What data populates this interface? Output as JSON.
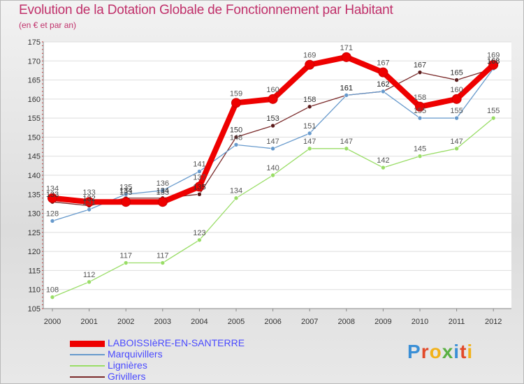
{
  "title": "Evolution de la Dotation Globale de Fonctionnement par Habitant",
  "subtitle": "(en € et par an)",
  "logo": {
    "text": "Proxiti"
  },
  "colors": {
    "LABOISSIÈRE-EN-SANTERRE": "#ee0000",
    "Marquivillers": "#6699cc",
    "Lignières": "#99dd66",
    "Grivillers": "#7a2a2a"
  },
  "chart_data": {
    "type": "line",
    "title": "Evolution de la Dotation Globale de Fonctionnement par Habitant",
    "subtitle": "(en € et par an)",
    "xlabel": "",
    "ylabel": "",
    "ylim": [
      105,
      175
    ],
    "yticks": [
      105,
      110,
      115,
      120,
      125,
      130,
      135,
      140,
      145,
      150,
      155,
      160,
      165,
      170,
      175
    ],
    "grid": "horizontal",
    "legend": "bottom-left",
    "x": [
      "2000",
      "2001",
      "2002",
      "2003",
      "2004",
      "2005",
      "2006",
      "2007",
      "2008",
      "2009",
      "2010",
      "2011",
      "2012"
    ],
    "series": [
      {
        "name": "LABOISSIÈRE-EN-SANTERRE",
        "legend_label": "LABOISSIèRE-EN-SANTERRE",
        "values": [
          134,
          133,
          133,
          133,
          137,
          159,
          160,
          169,
          171,
          167,
          158,
          160,
          169
        ]
      },
      {
        "name": "Marquivillers",
        "legend_label": "Marquivillers",
        "values": [
          128,
          131,
          135,
          136,
          141,
          148,
          147,
          151,
          161,
          162,
          155,
          155,
          168
        ]
      },
      {
        "name": "Lignières",
        "legend_label": "Lignières",
        "values": [
          108,
          112,
          117,
          117,
          123,
          134,
          140,
          147,
          147,
          142,
          145,
          147,
          155
        ]
      },
      {
        "name": "Grivillers",
        "legend_label": "Grivillers",
        "values": [
          133,
          132,
          134,
          134,
          135,
          150,
          153,
          158,
          161,
          162,
          167,
          165,
          168
        ]
      }
    ]
  }
}
